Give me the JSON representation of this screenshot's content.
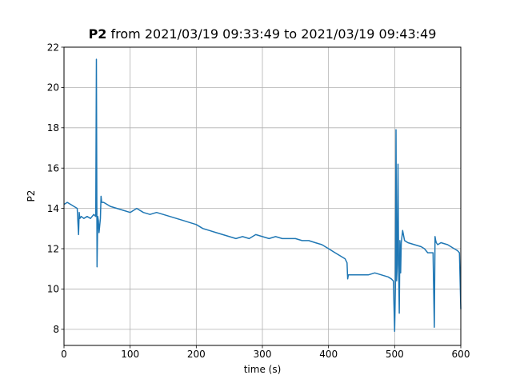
{
  "chart_data": {
    "type": "line",
    "title_bold": "P2",
    "title_rest": " from 2021/03/19 09:33:49 to 2021/03/19 09:43:49",
    "xlabel": "time (s)",
    "ylabel": "P2",
    "xlim": [
      0,
      600
    ],
    "ylim": [
      7.2,
      22
    ],
    "xticks": [
      0,
      100,
      200,
      300,
      400,
      500,
      600
    ],
    "yticks": [
      8,
      10,
      12,
      14,
      16,
      18,
      20,
      22
    ],
    "grid": true,
    "line_color": "#1f77b4",
    "series": [
      {
        "x": [
          0,
          5,
          10,
          15,
          20,
          22,
          23,
          24,
          26,
          30,
          35,
          40,
          45,
          48,
          49,
          50,
          51,
          52,
          53,
          55,
          56,
          57,
          60,
          70,
          80,
          90,
          100,
          110,
          120,
          130,
          140,
          150,
          160,
          170,
          180,
          190,
          200,
          210,
          220,
          230,
          240,
          250,
          260,
          270,
          280,
          290,
          300,
          310,
          320,
          330,
          340,
          350,
          360,
          370,
          380,
          390,
          400,
          410,
          420,
          425,
          428,
          429,
          430,
          440,
          450,
          460,
          470,
          480,
          490,
          495,
          498,
          500,
          501,
          502,
          503,
          504,
          505,
          506,
          507,
          508,
          509,
          510,
          512,
          515,
          520,
          530,
          540,
          545,
          550,
          555,
          558,
          560,
          561,
          562,
          563,
          565,
          570,
          580,
          590,
          595,
          598,
          600
        ],
        "y": [
          14.2,
          14.3,
          14.2,
          14.1,
          14.0,
          12.7,
          13.8,
          13.5,
          13.6,
          13.5,
          13.6,
          13.5,
          13.7,
          13.6,
          21.4,
          11.1,
          13.6,
          13.4,
          12.8,
          13.5,
          14.6,
          14.3,
          14.3,
          14.1,
          14.0,
          13.9,
          13.8,
          14.0,
          13.8,
          13.7,
          13.8,
          13.7,
          13.6,
          13.5,
          13.4,
          13.3,
          13.2,
          13.0,
          12.9,
          12.8,
          12.7,
          12.6,
          12.5,
          12.6,
          12.5,
          12.7,
          12.6,
          12.5,
          12.6,
          12.5,
          12.5,
          12.5,
          12.4,
          12.4,
          12.3,
          12.2,
          12.0,
          11.8,
          11.6,
          11.5,
          11.3,
          10.5,
          10.7,
          10.7,
          10.7,
          10.7,
          10.8,
          10.7,
          10.6,
          10.5,
          10.4,
          7.9,
          10.0,
          17.9,
          10.4,
          11.2,
          16.2,
          11.0,
          8.8,
          12.4,
          10.8,
          12.3,
          12.9,
          12.4,
          12.3,
          12.2,
          12.1,
          12.0,
          11.8,
          11.8,
          11.8,
          8.1,
          12.6,
          12.4,
          12.3,
          12.2,
          12.3,
          12.2,
          12.0,
          11.9,
          11.8,
          9.0
        ]
      }
    ]
  }
}
